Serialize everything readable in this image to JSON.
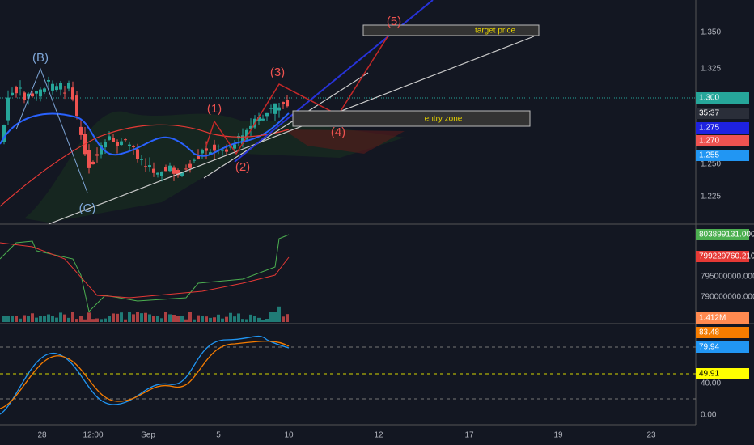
{
  "price_axis": {
    "labels": [
      "1.350",
      "1.325",
      "1.250",
      "1.225"
    ]
  },
  "price_badges": [
    {
      "text": "1.300",
      "color": "#26a69a"
    },
    {
      "text": "35:37",
      "color": "#2a2e39"
    },
    {
      "text": "1.275",
      "color": "#1e22e0"
    },
    {
      "text": "1.270",
      "color": "#ef5350"
    },
    {
      "text": "1.255",
      "color": "#2196f3"
    }
  ],
  "volume_axis": {
    "labels": [
      "795000000.000",
      "790000000.000"
    ],
    "badges": [
      {
        "text": "803899131.000",
        "color": "#4caf50"
      },
      {
        "text": "799229760.210",
        "color": "#e53935"
      },
      {
        "text": "1.412M",
        "color": "#ff8a50"
      }
    ]
  },
  "stochastic_axis": {
    "labels": [
      "40.00",
      "0.00"
    ],
    "badges": [
      {
        "text": "83.48",
        "color": "#f57c00"
      },
      {
        "text": "79.94",
        "color": "#2196f3"
      },
      {
        "text": "49.91",
        "color": "#ffff00"
      }
    ]
  },
  "time_axis": [
    "28",
    "12:00",
    "Sep",
    "5",
    "10",
    "12",
    "17",
    "19",
    "23"
  ],
  "annotations": {
    "waves": [
      "(B)",
      "(C)",
      "(1)",
      "(2)",
      "(3)",
      "(4)",
      "(5)"
    ],
    "target_label": "target price",
    "entry_label": "entry zone"
  }
}
